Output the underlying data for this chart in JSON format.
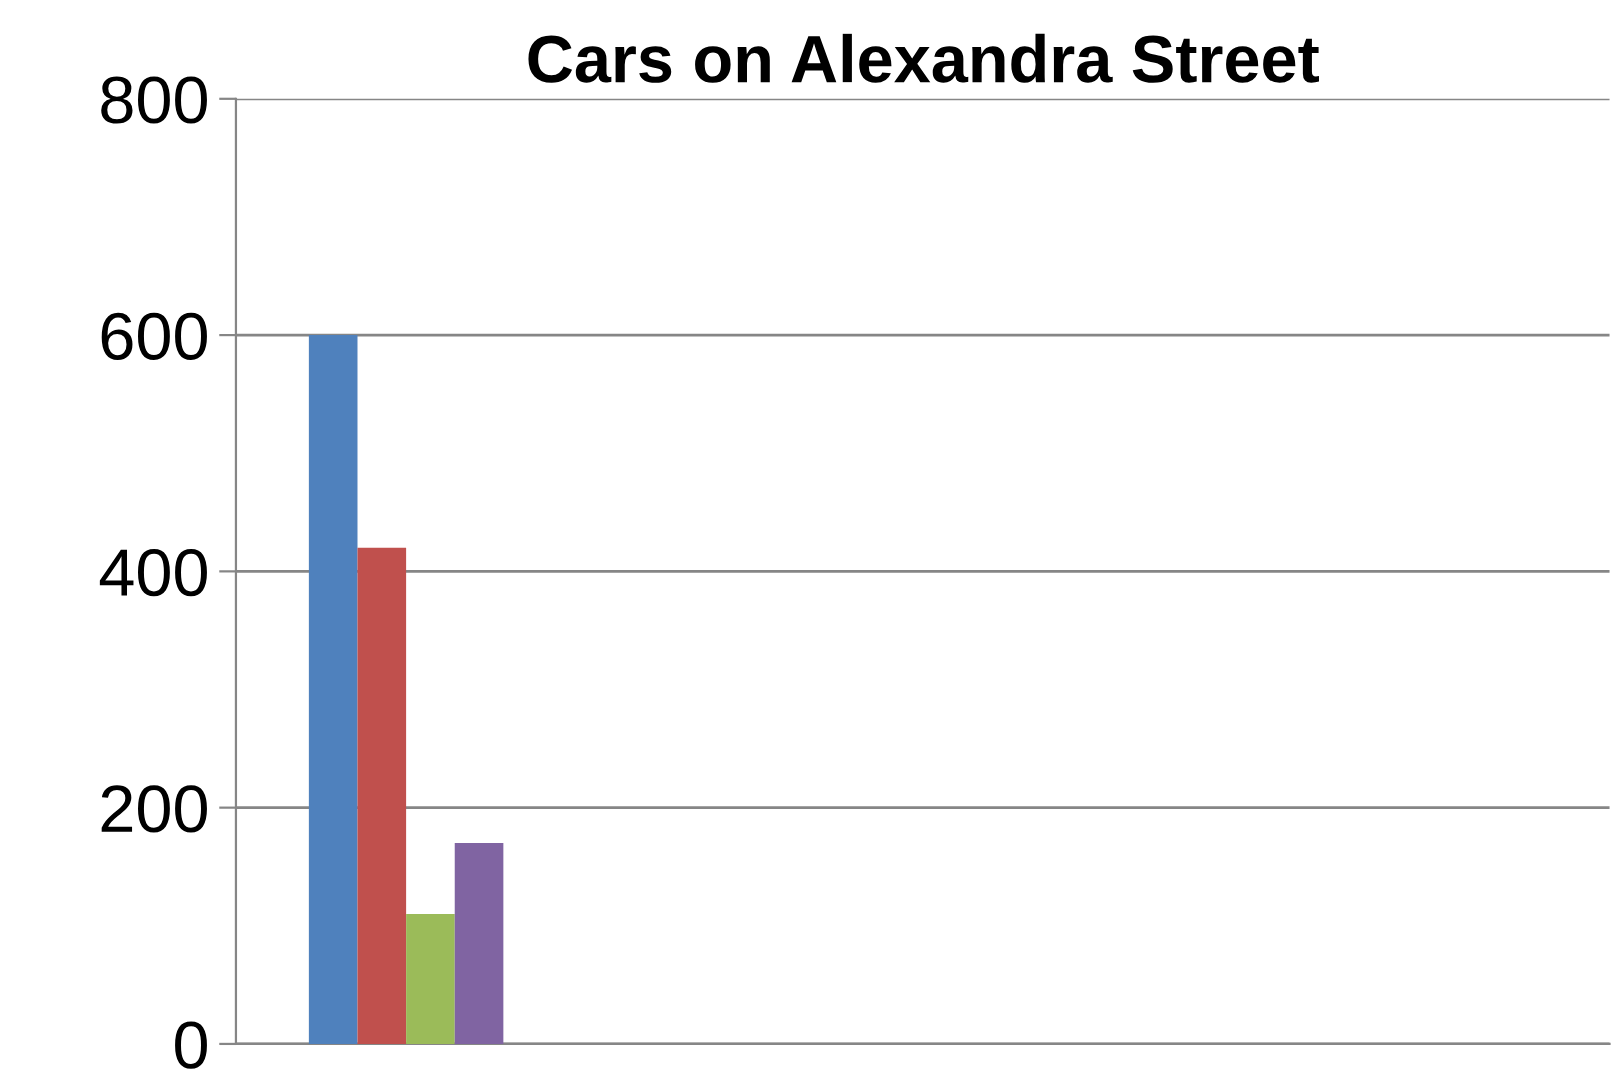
{
  "chart_data": {
    "type": "bar",
    "title": "Cars on Alexandra Street",
    "categories": [
      null
    ],
    "series": [
      {
        "color": "#4f81bd",
        "values": [
          600
        ]
      },
      {
        "color": "#c0504d",
        "values": [
          420
        ]
      },
      {
        "color": "#9bbb59",
        "values": [
          110
        ]
      },
      {
        "color": "#8064a2",
        "values": [
          170
        ]
      }
    ],
    "ylim": [
      0,
      800
    ],
    "yticks": [
      0,
      200,
      400,
      600,
      800
    ],
    "grid": "y"
  }
}
